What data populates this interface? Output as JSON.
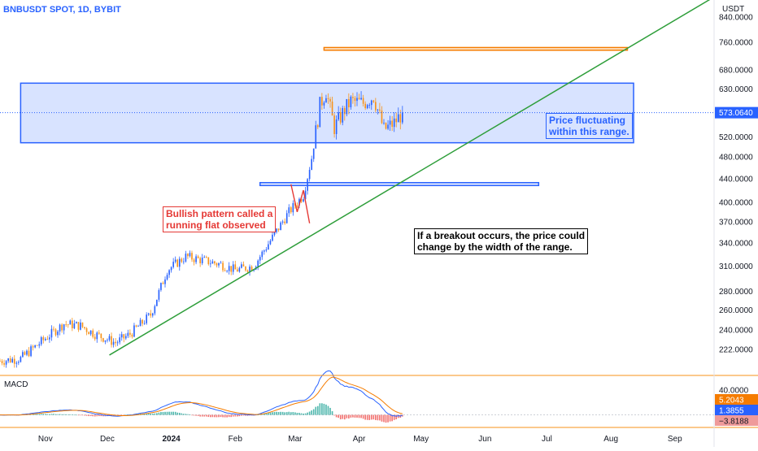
{
  "header": {
    "symbol": "BNBUSDT SPOT, 1D, BYBIT",
    "currency": "USDT"
  },
  "colors": {
    "up": "#2962ff",
    "down": "#f7931a",
    "trendline": "#2e9e3a",
    "range_fill": "rgba(41,98,255,0.18)",
    "range_stroke": "#2962ff",
    "orange_box_fill": "rgba(247,147,26,0.22)",
    "orange_box_stroke": "#f57c00",
    "macd_line": "#2962ff",
    "signal_line": "#f57c00",
    "hist_up": "#26a69a",
    "hist_down": "#ef5350",
    "separator": "#f7931a",
    "dotted_price": "#2962ff"
  },
  "annotations": {
    "running_flat": [
      "Bullish pattern called a",
      "running flat observed"
    ],
    "range_note": [
      "Price fluctuating",
      "within this range."
    ],
    "breakout_note": [
      "If a breakout occurs, the price could",
      "change by the width of the range."
    ]
  },
  "macd_panel": {
    "label": "MACD",
    "tick": "40.0000",
    "values": {
      "signal": "5.2043",
      "macd": "1.3855",
      "hist": "−3.8188"
    }
  },
  "chart_data": {
    "type": "candlestick",
    "title": "BNBUSDT SPOT, 1D, BYBIT",
    "y_scale": "log",
    "y_range": [
      200,
      900
    ],
    "y_ticks": [
      "840.0000",
      "760.0000",
      "680.0000",
      "630.0000",
      "573.0640",
      "520.0000",
      "480.0000",
      "440.0000",
      "400.0000",
      "370.0000",
      "340.0000",
      "310.0000",
      "280.0000",
      "260.0000",
      "240.0000",
      "222.0000"
    ],
    "y_tick_values": [
      840,
      760,
      680,
      630,
      573.064,
      520,
      480,
      440,
      400,
      370,
      340,
      310,
      280,
      260,
      240,
      222
    ],
    "x_range": [
      "2023-10-10",
      "2024-09-20"
    ],
    "x_ticks": [
      {
        "label": "Nov",
        "date": "2023-11-01",
        "bold": false
      },
      {
        "label": "Dec",
        "date": "2023-12-01",
        "bold": false
      },
      {
        "label": "2024",
        "date": "2024-01-01",
        "bold": true
      },
      {
        "label": "Feb",
        "date": "2024-02-01",
        "bold": false
      },
      {
        "label": "Mar",
        "date": "2024-03-01",
        "bold": false
      },
      {
        "label": "Apr",
        "date": "2024-04-01",
        "bold": false
      },
      {
        "label": "May",
        "date": "2024-05-01",
        "bold": false
      },
      {
        "label": "Jun",
        "date": "2024-06-01",
        "bold": false
      },
      {
        "label": "Jul",
        "date": "2024-07-01",
        "bold": false
      },
      {
        "label": "Aug",
        "date": "2024-08-01",
        "bold": false
      },
      {
        "label": "Sep",
        "date": "2024-09-01",
        "bold": false
      }
    ],
    "current_price": 573.064,
    "start_date": "2023-10-10",
    "end_date": "2024-04-22",
    "close_anchors": [
      [
        "2023-10-10",
        212
      ],
      [
        "2023-10-20",
        214
      ],
      [
        "2023-11-01",
        232
      ],
      [
        "2023-11-10",
        246
      ],
      [
        "2023-11-18",
        244
      ],
      [
        "2023-11-25",
        236
      ],
      [
        "2023-12-05",
        228
      ],
      [
        "2023-12-12",
        236
      ],
      [
        "2023-12-22",
        255
      ],
      [
        "2023-12-30",
        305
      ],
      [
        "2024-01-08",
        322
      ],
      [
        "2024-01-15",
        318
      ],
      [
        "2024-01-25",
        312
      ],
      [
        "2024-02-01",
        305
      ],
      [
        "2024-02-10",
        310
      ],
      [
        "2024-02-20",
        352
      ],
      [
        "2024-02-27",
        385
      ],
      [
        "2024-03-05",
        412
      ],
      [
        "2024-03-09",
        478
      ],
      [
        "2024-03-13",
        590
      ],
      [
        "2024-03-16",
        625
      ],
      [
        "2024-03-20",
        540
      ],
      [
        "2024-03-25",
        580
      ],
      [
        "2024-03-28",
        600
      ],
      [
        "2024-04-03",
        595
      ],
      [
        "2024-04-08",
        612
      ],
      [
        "2024-04-13",
        535
      ],
      [
        "2024-04-18",
        550
      ],
      [
        "2024-04-22",
        573
      ]
    ],
    "range_box": {
      "top": 645,
      "bottom": 508,
      "start": "2023-10-20",
      "end": "2024-08-12"
    },
    "support_box": {
      "top": 433,
      "bottom": 428,
      "start": "2024-02-13",
      "end": "2024-06-27"
    },
    "target_box": {
      "top": 744,
      "bottom": 736,
      "start": "2024-03-15",
      "end": "2024-08-09"
    },
    "trendline": [
      [
        "2023-12-02",
        217
      ],
      [
        "2024-09-22",
        920
      ]
    ],
    "running_flat_marks": [
      [
        "2024-02-28",
        430
      ],
      [
        "2024-03-02",
        385
      ],
      [
        "2024-03-05",
        420
      ],
      [
        "2024-03-08",
        368
      ]
    ],
    "macd_range": [
      -15,
      55
    ]
  }
}
